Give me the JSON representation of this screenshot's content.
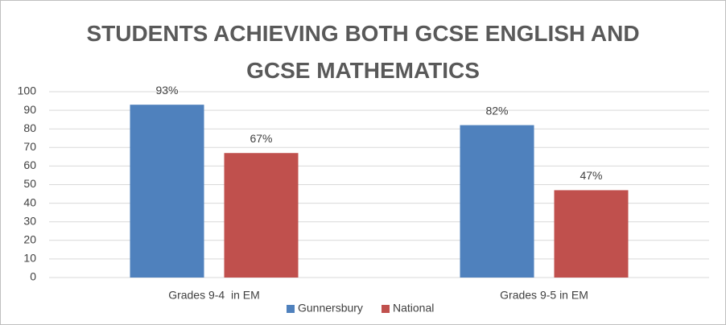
{
  "chart_data": {
    "type": "bar",
    "title": "STUDENTS ACHIEVING BOTH GCSE ENGLISH AND GCSE MATHEMATICS",
    "categories": [
      "Grades 9-4  in EM",
      "Grades 9-5 in EM"
    ],
    "series": [
      {
        "name": "Gunnersbury",
        "color": "#4f81bd",
        "values": [
          93,
          82
        ],
        "value_labels": [
          "93%",
          "82%"
        ]
      },
      {
        "name": "National",
        "color": "#c0504d",
        "values": [
          67,
          47
        ],
        "value_labels": [
          "67%",
          "47%"
        ]
      }
    ],
    "ylim": [
      0,
      100
    ],
    "yticks": [
      0,
      10,
      20,
      30,
      40,
      50,
      60,
      70,
      80,
      90,
      100
    ],
    "grid": true,
    "legend": "bottom"
  }
}
